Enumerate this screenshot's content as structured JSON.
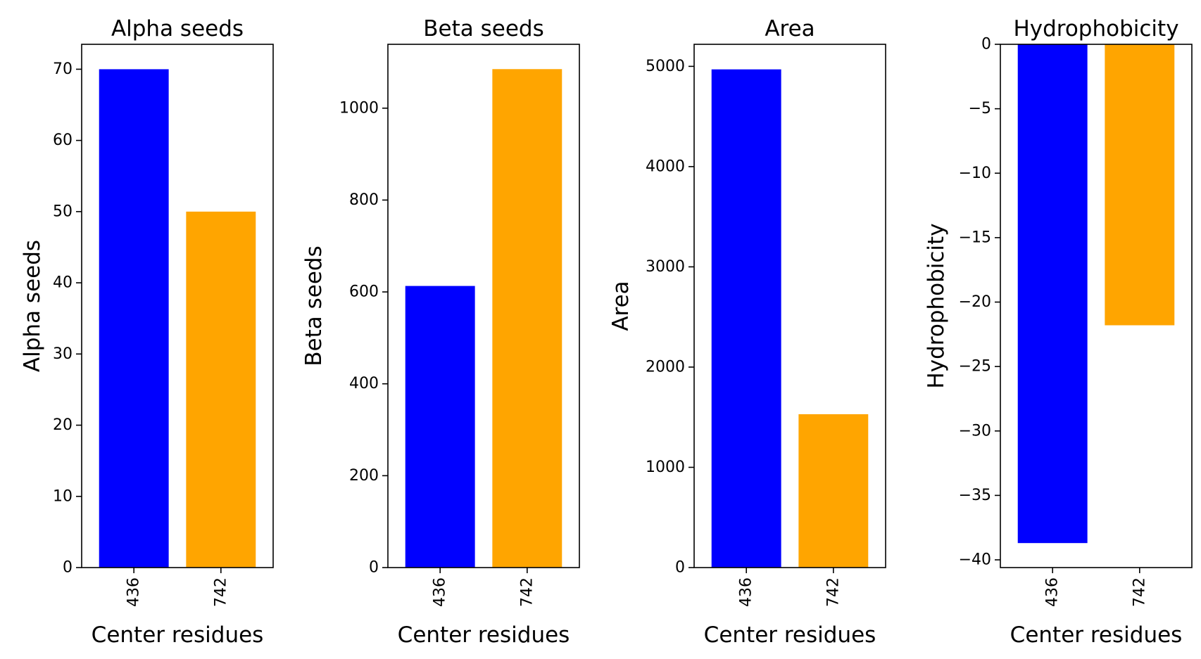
{
  "chart_data": [
    {
      "type": "bar",
      "title": "Alpha seeds",
      "xlabel": "Center residues",
      "ylabel": "Alpha seeds",
      "categories": [
        "436",
        "742"
      ],
      "values": [
        70,
        50
      ],
      "colors": [
        "#0000ff",
        "#ffa500"
      ],
      "ylim": [
        0,
        73.5
      ],
      "yticks": [
        0,
        10,
        20,
        30,
        40,
        50,
        60,
        70
      ],
      "grid": false
    },
    {
      "type": "bar",
      "title": "Beta seeds",
      "xlabel": "Center residues",
      "ylabel": "Beta seeds",
      "categories": [
        "436",
        "742"
      ],
      "values": [
        613,
        1085
      ],
      "colors": [
        "#0000ff",
        "#ffa500"
      ],
      "ylim": [
        0,
        1139
      ],
      "yticks": [
        0,
        200,
        400,
        600,
        800,
        1000
      ],
      "grid": false
    },
    {
      "type": "bar",
      "title": "Area",
      "xlabel": "Center residues",
      "ylabel": "Area",
      "categories": [
        "436",
        "742"
      ],
      "values": [
        4970,
        1530
      ],
      "colors": [
        "#0000ff",
        "#ffa500"
      ],
      "ylim": [
        0,
        5220
      ],
      "yticks": [
        0,
        1000,
        2000,
        3000,
        4000,
        5000
      ],
      "grid": false
    },
    {
      "type": "bar",
      "title": "Hydrophobicity",
      "xlabel": "Center residues",
      "ylabel": "Hydrophobicity",
      "categories": [
        "436",
        "742"
      ],
      "values": [
        -38.7,
        -21.8
      ],
      "colors": [
        "#0000ff",
        "#ffa500"
      ],
      "ylim": [
        -40.6,
        0
      ],
      "yticks": [
        0,
        -5,
        -10,
        -15,
        -20,
        -25,
        -30,
        -35,
        -40
      ],
      "ytick_labels": [
        "0",
        "−5",
        "−10",
        "−15",
        "−20",
        "−25",
        "−30",
        "−35",
        "−40"
      ],
      "grid": false
    }
  ]
}
